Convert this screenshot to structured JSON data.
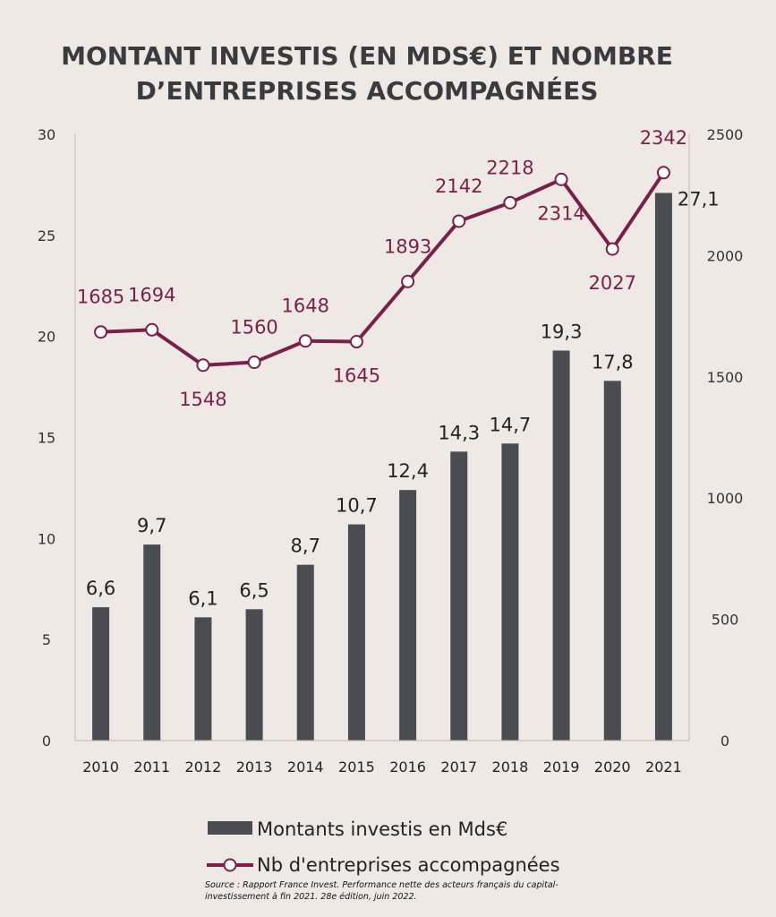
{
  "title_lines": [
    "MONTANT INVESTIS (EN MDS€) ET NOMBRE",
    "D’ENTREPRISES ACCOMPAGNÉES"
  ],
  "chart_data": {
    "type": "bar",
    "categories": [
      "2010",
      "2011",
      "2012",
      "2013",
      "2014",
      "2015",
      "2016",
      "2017",
      "2018",
      "2019",
      "2020",
      "2021"
    ],
    "series": [
      {
        "name": "Montants investis en Mds€",
        "type": "bar",
        "axis": "left",
        "values": [
          6.6,
          9.7,
          6.1,
          6.5,
          8.7,
          10.7,
          12.4,
          14.3,
          14.7,
          19.3,
          17.8,
          27.1
        ],
        "labels": [
          "6,6",
          "9,7",
          "6,1",
          "6,5",
          "8,7",
          "10,7",
          "12,4",
          "14,3",
          "14,7",
          "19,3",
          "17,8",
          "27,1"
        ],
        "color": "#4a4c52"
      },
      {
        "name": "Nb d'entreprises accompagnées",
        "type": "line",
        "axis": "right",
        "values": [
          1685,
          1694,
          1548,
          1560,
          1648,
          1645,
          1893,
          2142,
          2218,
          2314,
          2027,
          2342
        ],
        "labels": [
          "1685",
          "1694",
          "1548",
          "1560",
          "1648",
          "1645",
          "1893",
          "2142",
          "2218",
          "2314",
          "2027",
          "2342"
        ],
        "color": "#7a1f4a"
      }
    ],
    "y_left": {
      "range": [
        0,
        30
      ],
      "ticks": [
        "0",
        "5",
        "10",
        "15",
        "20",
        "25",
        "30"
      ]
    },
    "y_right": {
      "range": [
        0,
        2500
      ],
      "ticks": [
        "0",
        "500",
        "1000",
        "1500",
        "2000",
        "2500"
      ]
    },
    "grid": false,
    "legend_position": "bottom"
  },
  "source_lines": [
    "Source : Rapport France Invest. Performance nette des acteurs français du capital-",
    "investissement à fin 2021. 28e édition, juin 2022."
  ]
}
